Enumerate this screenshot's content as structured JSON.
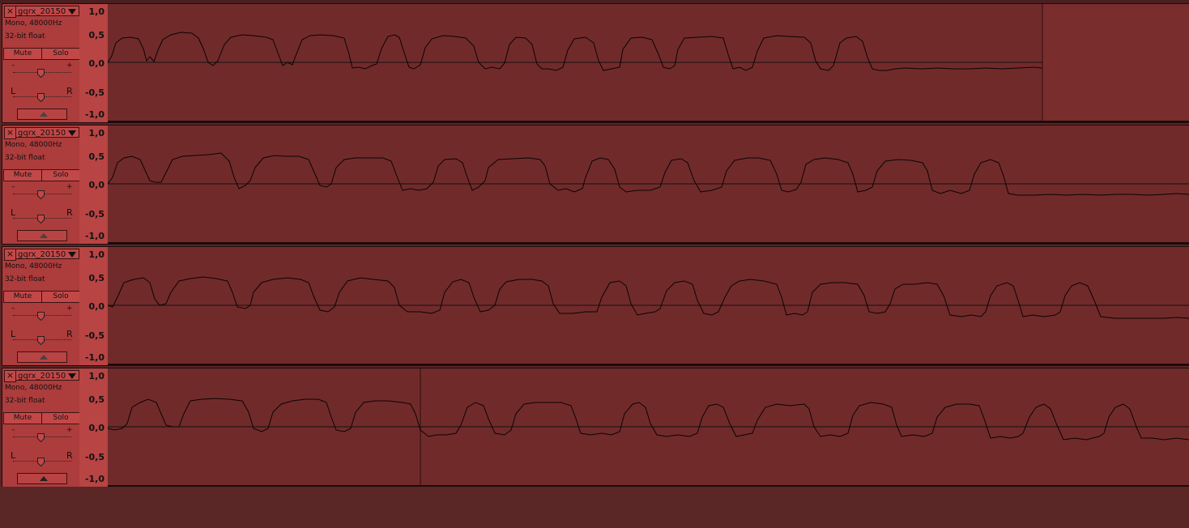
{
  "colors": {
    "clip_bg": "#712a2a",
    "empty_bg": "#7a2d2d",
    "ruler_bg": "#b84444",
    "ctrl_bg": "#ad3c3c",
    "wave": "#0a0404"
  },
  "axis": {
    "top": "1,0",
    "upper": "0,5",
    "zero": "0,0",
    "lower": "-0,5",
    "bottom": "-1,0"
  },
  "tracks": [
    {
      "name": "gqrx_20150",
      "format": "Mono, 48000Hz",
      "depth": "32-bit float",
      "mute": "Mute",
      "solo": "Solo",
      "pan_left": "L",
      "pan_right": "R",
      "gain_minus": "–",
      "gain_plus": "+",
      "close_icon": "×"
    },
    {
      "name": "gqrx_20150",
      "format": "Mono, 48000Hz",
      "depth": "32-bit float",
      "mute": "Mute",
      "solo": "Solo",
      "pan_left": "L",
      "pan_right": "R",
      "gain_minus": "–",
      "gain_plus": "+",
      "close_icon": "×"
    },
    {
      "name": "gqrx_20150",
      "format": "Mono, 48000Hz",
      "depth": "32-bit float",
      "mute": "Mute",
      "solo": "Solo",
      "pan_left": "L",
      "pan_right": "R",
      "gain_minus": "–",
      "gain_plus": "+",
      "close_icon": "×"
    },
    {
      "name": "gqrx_20150",
      "format": "Mono, 48000Hz",
      "depth": "32-bit float",
      "mute": "Mute",
      "solo": "Solo",
      "pan_left": "L",
      "pan_right": "R",
      "gain_minus": "–",
      "gain_plus": "+",
      "close_icon": "×"
    }
  ]
}
